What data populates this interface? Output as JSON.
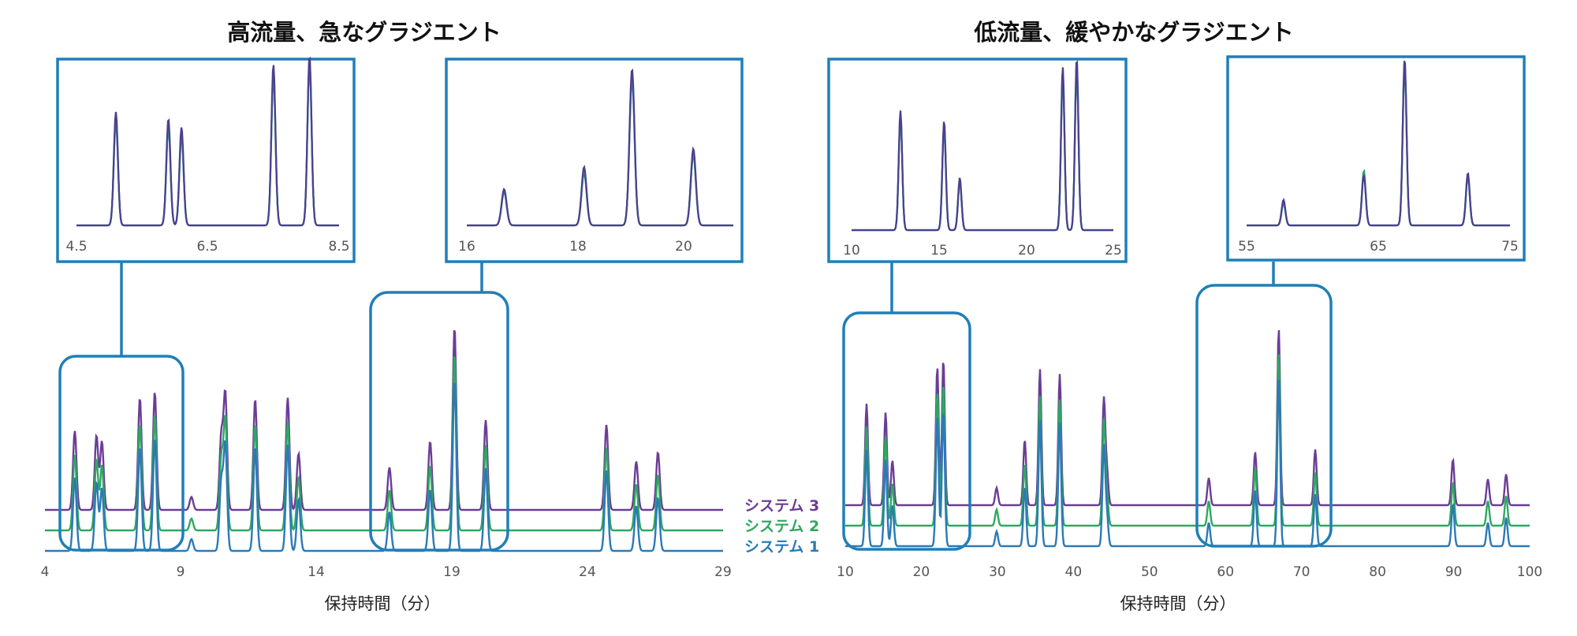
{
  "colors": {
    "system3": "#6a3d96",
    "system2": "#2ea860",
    "system1": "#2a7ab8",
    "frame": "#1f7fb8"
  },
  "legend": {
    "system3": "システム 3",
    "system2": "システム 2",
    "system1": "システム 1"
  },
  "chart_data": [
    {
      "type": "line",
      "title": "高流量、急なグラジエント",
      "xlabel": "保持時間（分）",
      "xlim": [
        4,
        29
      ],
      "xticks": [
        4,
        9,
        14,
        19,
        24,
        29
      ],
      "series": [
        {
          "name": "システム 3",
          "peaks": [
            [
              5.1,
              0.67
            ],
            [
              5.9,
              0.63
            ],
            [
              6.1,
              0.58
            ],
            [
              7.5,
              0.95
            ],
            [
              8.05,
              1.0
            ],
            [
              9.4,
              0.11
            ],
            [
              10.5,
              0.62
            ],
            [
              10.65,
              0.98
            ],
            [
              11.75,
              0.94
            ],
            [
              12.95,
              0.95
            ],
            [
              13.35,
              0.48
            ],
            [
              16.7,
              0.36
            ],
            [
              18.2,
              0.58
            ],
            [
              19.1,
              1.55
            ],
            [
              20.25,
              0.76
            ],
            [
              24.7,
              0.72
            ],
            [
              25.8,
              0.41
            ],
            [
              26.6,
              0.49
            ]
          ]
        },
        {
          "name": "システム 2",
          "peaks": [
            [
              5.1,
              0.64
            ],
            [
              5.9,
              0.6
            ],
            [
              6.1,
              0.55
            ],
            [
              7.5,
              0.9
            ],
            [
              8.05,
              0.98
            ],
            [
              9.4,
              0.1
            ],
            [
              10.5,
              0.6
            ],
            [
              10.65,
              0.94
            ],
            [
              11.75,
              0.9
            ],
            [
              12.95,
              0.92
            ],
            [
              13.35,
              0.45
            ],
            [
              16.7,
              0.34
            ],
            [
              18.2,
              0.55
            ],
            [
              19.1,
              1.5
            ],
            [
              20.25,
              0.72
            ],
            [
              24.7,
              0.7
            ],
            [
              25.8,
              0.39
            ],
            [
              26.6,
              0.47
            ]
          ]
        },
        {
          "name": "システム 1",
          "peaks": [
            [
              5.1,
              0.62
            ],
            [
              5.9,
              0.58
            ],
            [
              6.1,
              0.53
            ],
            [
              7.5,
              0.88
            ],
            [
              8.05,
              0.95
            ],
            [
              9.4,
              0.1
            ],
            [
              10.5,
              0.58
            ],
            [
              10.65,
              0.9
            ],
            [
              11.75,
              0.88
            ],
            [
              12.95,
              0.9
            ],
            [
              13.35,
              0.44
            ],
            [
              16.7,
              0.33
            ],
            [
              18.2,
              0.52
            ],
            [
              19.1,
              1.45
            ],
            [
              20.25,
              0.7
            ],
            [
              24.7,
              0.68
            ],
            [
              25.8,
              0.38
            ],
            [
              26.6,
              0.45
            ]
          ]
        }
      ],
      "insets": [
        {
          "xlim": [
            4.5,
            8.5
          ],
          "ticks": [
            "4.5",
            "6.5",
            "8.5"
          ]
        },
        {
          "xlim": [
            16,
            21
          ],
          "ticks": [
            "16",
            "18",
            "20"
          ]
        }
      ]
    },
    {
      "type": "line",
      "title": "低流量、緩やかなグラジエント",
      "xlabel": "保持時間（分）",
      "xlim": [
        10,
        100
      ],
      "xticks": [
        10,
        20,
        30,
        40,
        50,
        60,
        70,
        80,
        90,
        100
      ],
      "series": [
        {
          "name": "システム 3",
          "peaks": [
            [
              12.8,
              0.82
            ],
            [
              15.3,
              0.75
            ],
            [
              16.2,
              0.36
            ],
            [
              22.1,
              1.12
            ],
            [
              22.9,
              1.18
            ],
            [
              29.9,
              0.14
            ],
            [
              33.6,
              0.53
            ],
            [
              35.6,
              1.1
            ],
            [
              38.2,
              1.06
            ],
            [
              44.0,
              0.85
            ],
            [
              44.4,
              0.27
            ],
            [
              57.8,
              0.22
            ],
            [
              63.9,
              0.43
            ],
            [
              67.0,
              1.43
            ],
            [
              71.8,
              0.45
            ],
            [
              89.9,
              0.37
            ],
            [
              94.5,
              0.21
            ],
            [
              96.9,
              0.25
            ]
          ]
        },
        {
          "name": "システム 2",
          "peaks": [
            [
              12.8,
              0.8
            ],
            [
              15.3,
              0.72
            ],
            [
              16.2,
              0.34
            ],
            [
              22.1,
              1.08
            ],
            [
              22.9,
              1.15
            ],
            [
              29.9,
              0.13
            ],
            [
              33.6,
              0.5
            ],
            [
              35.6,
              1.05
            ],
            [
              38.2,
              1.02
            ],
            [
              44.0,
              0.84
            ],
            [
              44.4,
              0.25
            ],
            [
              57.8,
              0.2
            ],
            [
              63.9,
              0.47
            ],
            [
              67.0,
              1.4
            ],
            [
              71.8,
              0.43
            ],
            [
              89.9,
              0.35
            ],
            [
              94.5,
              0.2
            ],
            [
              96.9,
              0.24
            ]
          ]
        },
        {
          "name": "システム 1",
          "peaks": [
            [
              12.8,
              0.78
            ],
            [
              15.3,
              0.7
            ],
            [
              16.2,
              0.33
            ],
            [
              22.1,
              1.05
            ],
            [
              22.9,
              1.1
            ],
            [
              29.9,
              0.12
            ],
            [
              33.6,
              0.48
            ],
            [
              35.6,
              1.02
            ],
            [
              38.2,
              1.0
            ],
            [
              44.0,
              0.8
            ],
            [
              44.4,
              0.24
            ],
            [
              57.8,
              0.19
            ],
            [
              63.9,
              0.45
            ],
            [
              67.0,
              1.36
            ],
            [
              71.8,
              0.42
            ],
            [
              89.9,
              0.34
            ],
            [
              94.5,
              0.19
            ],
            [
              96.9,
              0.23
            ]
          ]
        }
      ],
      "insets": [
        {
          "xlim": [
            10,
            25
          ],
          "ticks": [
            "10",
            "15",
            "20",
            "25"
          ]
        },
        {
          "xlim": [
            55,
            75
          ],
          "ticks": [
            "55",
            "65",
            "75"
          ]
        }
      ]
    }
  ]
}
